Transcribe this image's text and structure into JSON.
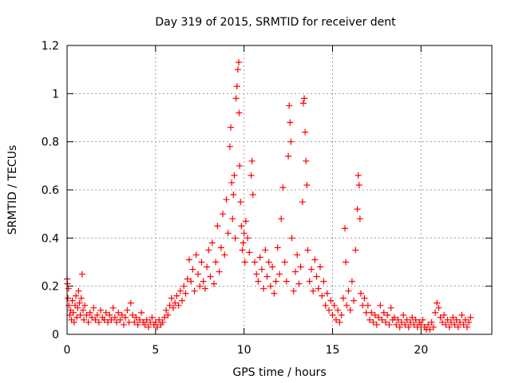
{
  "chart_data": {
    "type": "scatter",
    "title": "Day 319 of 2015, SRMTID for receiver dent",
    "xlabel": "GPS time / hours",
    "ylabel": "SRMTID / TECUs",
    "xlim": [
      0,
      24
    ],
    "ylim": [
      0,
      1.2
    ],
    "grid": true,
    "marker": "+",
    "series_color": "#ff0000",
    "xticks": [
      0,
      5,
      10,
      15,
      20
    ],
    "xtick_labels": [
      "0",
      "5",
      "10",
      "15",
      "20"
    ],
    "yticks": [
      0,
      0.2,
      0.4,
      0.6,
      0.8,
      1.0,
      1.2
    ],
    "ytick_labels": [
      "0",
      "0.2",
      "0.4",
      "0.6",
      "0.8",
      "1",
      "1.2"
    ],
    "series": [
      {
        "name": "dent",
        "points": [
          [
            0.0,
            0.23
          ],
          [
            0.02,
            0.21
          ],
          [
            0.05,
            0.15
          ],
          [
            0.08,
            0.19
          ],
          [
            0.1,
            0.12
          ],
          [
            0.15,
            0.08
          ],
          [
            0.2,
            0.1
          ],
          [
            0.25,
            0.06
          ],
          [
            0.3,
            0.14
          ],
          [
            0.35,
            0.09
          ],
          [
            0.4,
            0.05
          ],
          [
            0.45,
            0.12
          ],
          [
            0.5,
            0.16
          ],
          [
            0.55,
            0.07
          ],
          [
            0.6,
            0.11
          ],
          [
            0.65,
            0.18
          ],
          [
            0.7,
            0.13
          ],
          [
            0.75,
            0.08
          ],
          [
            0.8,
            0.15
          ],
          [
            0.85,
            0.25
          ],
          [
            0.9,
            0.1
          ],
          [
            0.95,
            0.06
          ],
          [
            1.0,
            0.12
          ],
          [
            1.1,
            0.08
          ],
          [
            1.2,
            0.05
          ],
          [
            1.3,
            0.09
          ],
          [
            1.4,
            0.07
          ],
          [
            1.5,
            0.11
          ],
          [
            1.6,
            0.06
          ],
          [
            1.7,
            0.08
          ],
          [
            1.8,
            0.05
          ],
          [
            1.9,
            0.1
          ],
          [
            2.0,
            0.07
          ],
          [
            2.1,
            0.06
          ],
          [
            2.2,
            0.09
          ],
          [
            2.3,
            0.05
          ],
          [
            2.4,
            0.08
          ],
          [
            2.5,
            0.06
          ],
          [
            2.6,
            0.11
          ],
          [
            2.7,
            0.07
          ],
          [
            2.8,
            0.05
          ],
          [
            2.9,
            0.09
          ],
          [
            3.0,
            0.06
          ],
          [
            3.1,
            0.08
          ],
          [
            3.2,
            0.04
          ],
          [
            3.3,
            0.07
          ],
          [
            3.4,
            0.1
          ],
          [
            3.5,
            0.05
          ],
          [
            3.6,
            0.13
          ],
          [
            3.7,
            0.08
          ],
          [
            3.8,
            0.05
          ],
          [
            3.9,
            0.07
          ],
          [
            4.0,
            0.04
          ],
          [
            4.1,
            0.06
          ],
          [
            4.2,
            0.09
          ],
          [
            4.3,
            0.05
          ],
          [
            4.4,
            0.04
          ],
          [
            4.5,
            0.06
          ],
          [
            4.6,
            0.03
          ],
          [
            4.7,
            0.05
          ],
          [
            4.8,
            0.07
          ],
          [
            4.9,
            0.04
          ],
          [
            5.0,
            0.05
          ],
          [
            5.1,
            0.03
          ],
          [
            5.2,
            0.06
          ],
          [
            5.3,
            0.04
          ],
          [
            5.4,
            0.05
          ],
          [
            5.5,
            0.07
          ],
          [
            5.6,
            0.1
          ],
          [
            5.7,
            0.08
          ],
          [
            5.8,
            0.12
          ],
          [
            5.9,
            0.15
          ],
          [
            6.0,
            0.11
          ],
          [
            6.1,
            0.13
          ],
          [
            6.2,
            0.16
          ],
          [
            6.3,
            0.12
          ],
          [
            6.4,
            0.18
          ],
          [
            6.5,
            0.14
          ],
          [
            6.6,
            0.2
          ],
          [
            6.7,
            0.17
          ],
          [
            6.8,
            0.23
          ],
          [
            6.9,
            0.31
          ],
          [
            7.0,
            0.22
          ],
          [
            7.1,
            0.27
          ],
          [
            7.2,
            0.18
          ],
          [
            7.3,
            0.33
          ],
          [
            7.4,
            0.25
          ],
          [
            7.5,
            0.2
          ],
          [
            7.6,
            0.3
          ],
          [
            7.7,
            0.22
          ],
          [
            7.8,
            0.19
          ],
          [
            7.9,
            0.28
          ],
          [
            8.0,
            0.35
          ],
          [
            8.1,
            0.24
          ],
          [
            8.2,
            0.38
          ],
          [
            8.3,
            0.21
          ],
          [
            8.4,
            0.3
          ],
          [
            8.5,
            0.45
          ],
          [
            8.6,
            0.26
          ],
          [
            8.7,
            0.36
          ],
          [
            8.8,
            0.5
          ],
          [
            8.9,
            0.33
          ],
          [
            9.0,
            0.56
          ],
          [
            9.1,
            0.42
          ],
          [
            9.2,
            0.78
          ],
          [
            9.25,
            0.86
          ],
          [
            9.3,
            0.63
          ],
          [
            9.35,
            0.48
          ],
          [
            9.4,
            0.58
          ],
          [
            9.45,
            0.66
          ],
          [
            9.5,
            0.4
          ],
          [
            9.55,
            0.98
          ],
          [
            9.6,
            1.03
          ],
          [
            9.65,
            1.1
          ],
          [
            9.7,
            1.13
          ],
          [
            9.72,
            0.92
          ],
          [
            9.75,
            0.7
          ],
          [
            9.8,
            0.55
          ],
          [
            9.85,
            0.45
          ],
          [
            9.9,
            0.35
          ],
          [
            9.95,
            0.38
          ],
          [
            10.0,
            0.42
          ],
          [
            10.05,
            0.3
          ],
          [
            10.1,
            0.47
          ],
          [
            10.2,
            0.4
          ],
          [
            10.3,
            0.34
          ],
          [
            10.4,
            0.66
          ],
          [
            10.45,
            0.72
          ],
          [
            10.5,
            0.58
          ],
          [
            10.6,
            0.3
          ],
          [
            10.7,
            0.25
          ],
          [
            10.8,
            0.22
          ],
          [
            10.9,
            0.32
          ],
          [
            11.0,
            0.27
          ],
          [
            11.1,
            0.19
          ],
          [
            11.2,
            0.35
          ],
          [
            11.3,
            0.24
          ],
          [
            11.4,
            0.3
          ],
          [
            11.5,
            0.2
          ],
          [
            11.6,
            0.28
          ],
          [
            11.7,
            0.17
          ],
          [
            11.8,
            0.22
          ],
          [
            11.9,
            0.36
          ],
          [
            12.0,
            0.25
          ],
          [
            12.1,
            0.48
          ],
          [
            12.2,
            0.61
          ],
          [
            12.3,
            0.3
          ],
          [
            12.4,
            0.22
          ],
          [
            12.5,
            0.74
          ],
          [
            12.55,
            0.95
          ],
          [
            12.6,
            0.88
          ],
          [
            12.65,
            0.8
          ],
          [
            12.7,
            0.4
          ],
          [
            12.8,
            0.18
          ],
          [
            12.9,
            0.26
          ],
          [
            13.0,
            0.33
          ],
          [
            13.1,
            0.21
          ],
          [
            13.2,
            0.28
          ],
          [
            13.3,
            0.55
          ],
          [
            13.35,
            0.96
          ],
          [
            13.4,
            0.98
          ],
          [
            13.45,
            0.84
          ],
          [
            13.5,
            0.72
          ],
          [
            13.55,
            0.62
          ],
          [
            13.6,
            0.35
          ],
          [
            13.7,
            0.22
          ],
          [
            13.8,
            0.27
          ],
          [
            13.9,
            0.18
          ],
          [
            14.0,
            0.31
          ],
          [
            14.1,
            0.24
          ],
          [
            14.2,
            0.19
          ],
          [
            14.3,
            0.28
          ],
          [
            14.4,
            0.16
          ],
          [
            14.5,
            0.22
          ],
          [
            14.6,
            0.12
          ],
          [
            14.7,
            0.17
          ],
          [
            14.8,
            0.1
          ],
          [
            14.9,
            0.14
          ],
          [
            15.0,
            0.08
          ],
          [
            15.1,
            0.12
          ],
          [
            15.2,
            0.06
          ],
          [
            15.3,
            0.1
          ],
          [
            15.4,
            0.05
          ],
          [
            15.5,
            0.08
          ],
          [
            15.6,
            0.15
          ],
          [
            15.7,
            0.44
          ],
          [
            15.75,
            0.3
          ],
          [
            15.8,
            0.12
          ],
          [
            15.9,
            0.18
          ],
          [
            16.0,
            0.1
          ],
          [
            16.1,
            0.22
          ],
          [
            16.2,
            0.14
          ],
          [
            16.3,
            0.35
          ],
          [
            16.4,
            0.52
          ],
          [
            16.45,
            0.66
          ],
          [
            16.5,
            0.62
          ],
          [
            16.55,
            0.48
          ],
          [
            16.6,
            0.17
          ],
          [
            16.7,
            0.12
          ],
          [
            16.8,
            0.15
          ],
          [
            16.9,
            0.09
          ],
          [
            17.0,
            0.12
          ],
          [
            17.1,
            0.06
          ],
          [
            17.2,
            0.09
          ],
          [
            17.3,
            0.05
          ],
          [
            17.4,
            0.08
          ],
          [
            17.5,
            0.04
          ],
          [
            17.6,
            0.07
          ],
          [
            17.7,
            0.12
          ],
          [
            17.8,
            0.06
          ],
          [
            17.9,
            0.09
          ],
          [
            18.0,
            0.05
          ],
          [
            18.1,
            0.08
          ],
          [
            18.2,
            0.04
          ],
          [
            18.3,
            0.11
          ],
          [
            18.4,
            0.06
          ],
          [
            18.5,
            0.07
          ],
          [
            18.6,
            0.04
          ],
          [
            18.7,
            0.06
          ],
          [
            18.8,
            0.03
          ],
          [
            18.9,
            0.05
          ],
          [
            19.0,
            0.08
          ],
          [
            19.1,
            0.04
          ],
          [
            19.2,
            0.06
          ],
          [
            19.3,
            0.03
          ],
          [
            19.4,
            0.05
          ],
          [
            19.5,
            0.07
          ],
          [
            19.6,
            0.04
          ],
          [
            19.7,
            0.06
          ],
          [
            19.8,
            0.03
          ],
          [
            19.9,
            0.05
          ],
          [
            20.0,
            0.04
          ],
          [
            20.1,
            0.06
          ],
          [
            20.2,
            0.03
          ],
          [
            20.3,
            0.02
          ],
          [
            20.4,
            0.04
          ],
          [
            20.5,
            0.02
          ],
          [
            20.6,
            0.05
          ],
          [
            20.7,
            0.03
          ],
          [
            20.8,
            0.09
          ],
          [
            20.9,
            0.13
          ],
          [
            21.0,
            0.11
          ],
          [
            21.1,
            0.07
          ],
          [
            21.2,
            0.05
          ],
          [
            21.3,
            0.08
          ],
          [
            21.4,
            0.04
          ],
          [
            21.5,
            0.06
          ],
          [
            21.6,
            0.03
          ],
          [
            21.7,
            0.05
          ],
          [
            21.8,
            0.07
          ],
          [
            21.9,
            0.04
          ],
          [
            22.0,
            0.06
          ],
          [
            22.1,
            0.03
          ],
          [
            22.2,
            0.05
          ],
          [
            22.3,
            0.08
          ],
          [
            22.4,
            0.04
          ],
          [
            22.5,
            0.06
          ],
          [
            22.6,
            0.03
          ],
          [
            22.7,
            0.05
          ],
          [
            22.8,
            0.07
          ]
        ]
      }
    ]
  }
}
